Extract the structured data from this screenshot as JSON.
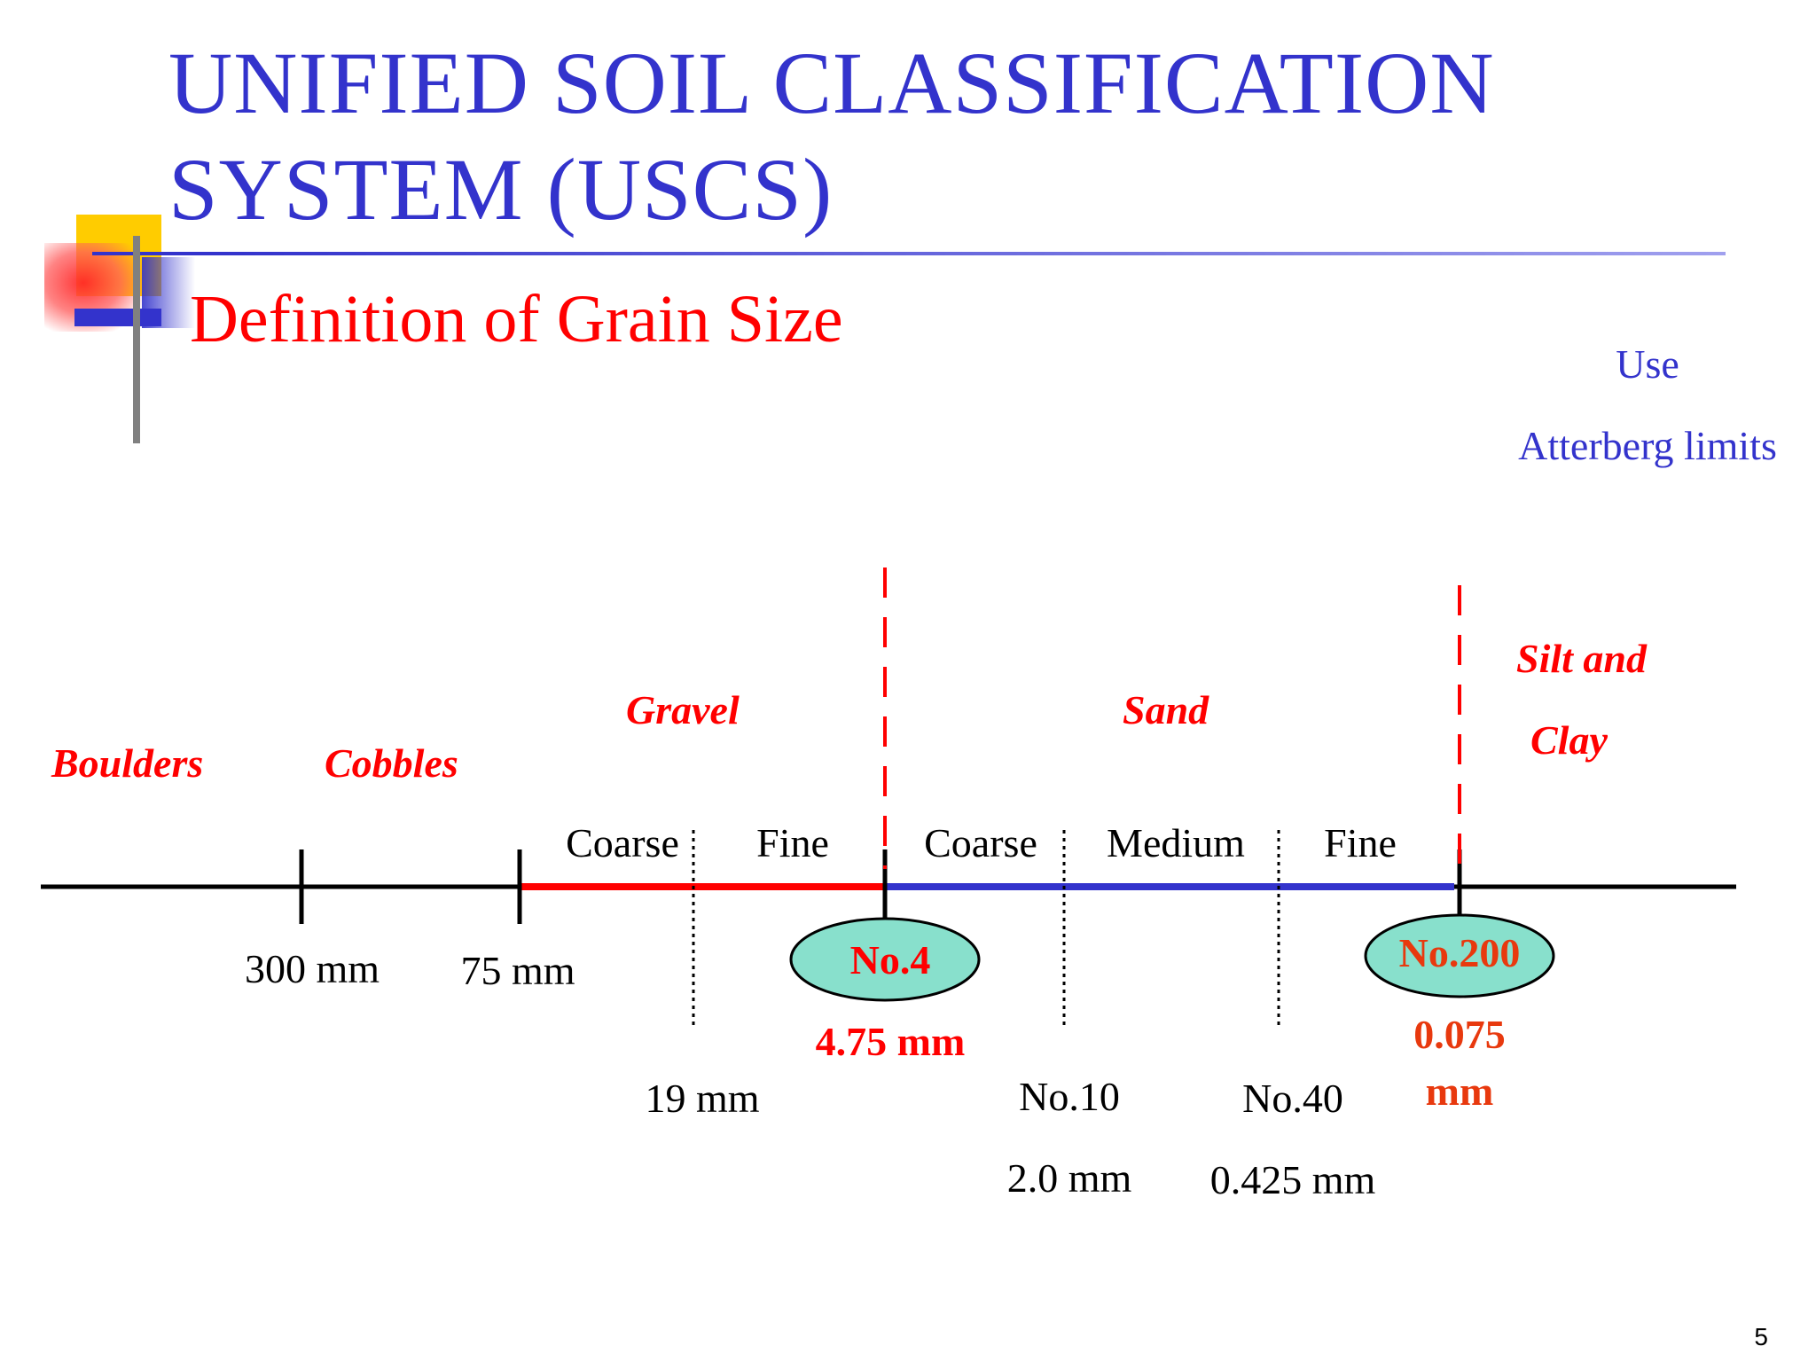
{
  "title": {
    "line1": "UNIFIED SOIL CLASSIFICATION",
    "line2": "SYSTEM (USCS)"
  },
  "subtitle": "Definition of Grain Size",
  "note": {
    "line1": "Use",
    "line2": "Atterberg limits"
  },
  "categories": {
    "boulders": "Boulders",
    "cobbles": "Cobbles",
    "gravel": "Gravel",
    "sand": "Sand",
    "silt_clay_line1": "Silt and",
    "silt_clay_line2": "Clay"
  },
  "subdivisions": {
    "gravel_coarse": "Coarse",
    "gravel_fine": "Fine",
    "sand_coarse": "Coarse",
    "sand_medium": "Medium",
    "sand_fine": "Fine"
  },
  "boundaries": {
    "b300": "300 mm",
    "b75": "75 mm",
    "b19": "19 mm",
    "no4_sieve": "No.4",
    "no4_size": "4.75 mm",
    "no10_sieve": "No.10",
    "no10_size": "2.0 mm",
    "no40_sieve": "No.40",
    "no40_size": "0.425 mm",
    "no200_sieve": "No.200",
    "no200_size_line1": "0.075",
    "no200_size_line2": "mm"
  },
  "colors": {
    "title": "#3333cc",
    "subtitle": "#ff0000",
    "gravel_segment": "#ff0000",
    "sand_segment": "#3333cc",
    "sieve_ellipse": "#88e0cc",
    "no200_text": "#e8390e"
  },
  "page_number": "5"
}
